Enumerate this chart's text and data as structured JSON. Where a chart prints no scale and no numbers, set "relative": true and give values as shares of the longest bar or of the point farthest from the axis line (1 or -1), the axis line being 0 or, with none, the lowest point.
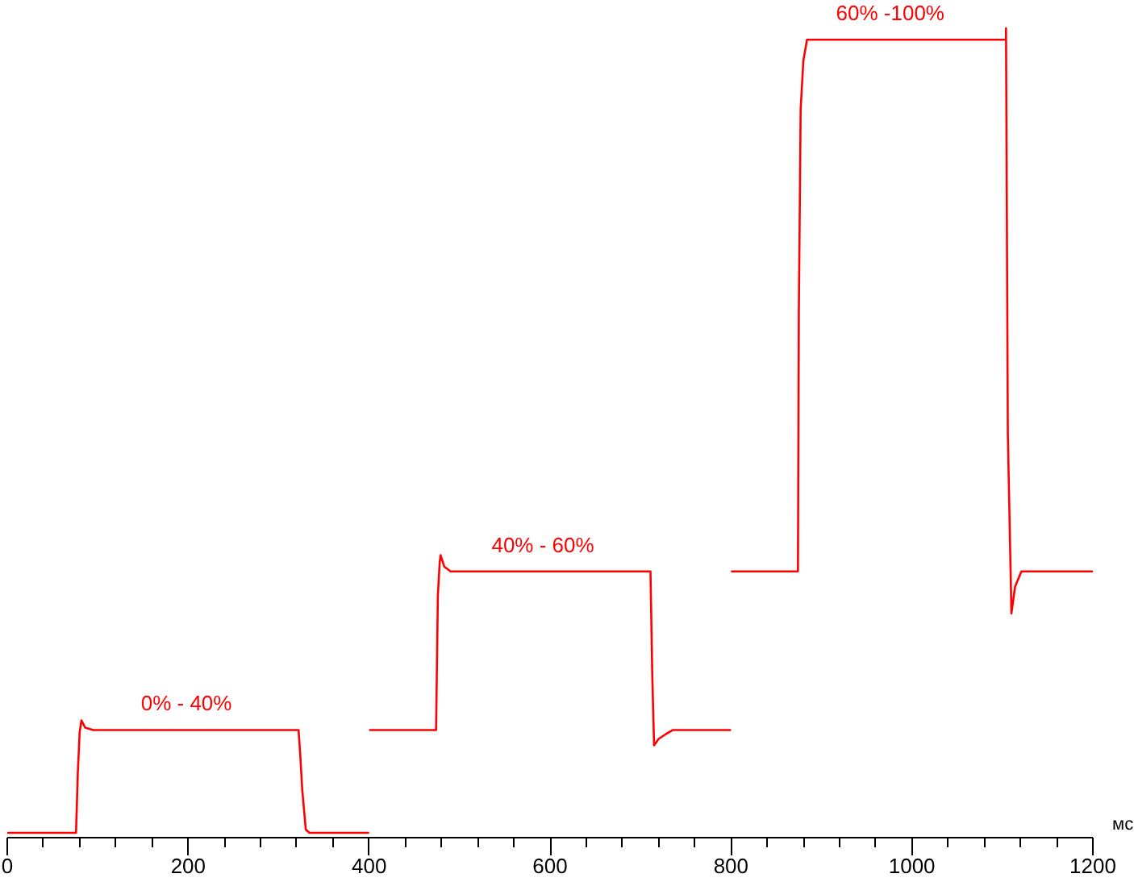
{
  "chart_data": {
    "type": "line",
    "relative": true,
    "xlabel": "мс",
    "grid": false,
    "marker": "none",
    "line_style": "solid",
    "xlim": [
      0,
      1200
    ],
    "xticks": [
      0,
      {
        "value": 40,
        "label": null
      },
      {
        "value": 80,
        "label": null
      },
      {
        "value": 120,
        "label": null
      },
      {
        "value": 160,
        "label": null
      },
      200,
      {
        "value": 240,
        "label": null
      },
      {
        "value": 280,
        "label": null
      },
      {
        "value": 320,
        "label": null
      },
      {
        "value": 360,
        "label": null
      },
      400,
      {
        "value": 440,
        "label": null
      },
      {
        "value": 480,
        "label": null
      },
      {
        "value": 520,
        "label": null
      },
      {
        "value": 560,
        "label": null
      },
      600,
      {
        "value": 640,
        "label": null
      },
      {
        "value": 680,
        "label": null
      },
      {
        "value": 720,
        "label": null
      },
      {
        "value": 760,
        "label": null
      },
      800,
      {
        "value": 840,
        "label": null
      },
      {
        "value": 880,
        "label": null
      },
      {
        "value": 920,
        "label": null
      },
      {
        "value": 960,
        "label": null
      },
      1000,
      {
        "value": 1040,
        "label": null
      },
      {
        "value": 1080,
        "label": null
      },
      {
        "value": 1120,
        "label": null
      },
      {
        "value": 1160,
        "label": null
      },
      1200
    ],
    "series": [
      {
        "color": "#ff0000",
        "x": [
          0,
          76,
          78,
          80,
          82,
          86,
          95,
          322,
          324,
          326,
          330,
          334,
          400
        ],
        "values": [
          0.006,
          0.006,
          0.08,
          0.13,
          0.145,
          0.136,
          0.133,
          0.133,
          0.1,
          0.06,
          0.01,
          0.006,
          0.006
        ]
      },
      {
        "color": "#ff0000",
        "x": [
          400,
          474,
          476,
          478,
          479,
          483,
          490,
          711,
          713,
          715,
          720,
          728,
          736,
          800
        ],
        "values": [
          0.133,
          0.133,
          0.3,
          0.34,
          0.349,
          0.335,
          0.329,
          0.329,
          0.2,
          0.114,
          0.122,
          0.128,
          0.133,
          0.133
        ]
      },
      {
        "color": "#ff0000",
        "x": [
          800,
          874,
          875,
          877,
          880,
          884,
          1104,
          1104,
          1106,
          1110,
          1114,
          1121,
          1200
        ],
        "values": [
          0.329,
          0.329,
          0.65,
          0.9,
          0.96,
          0.986,
          0.986,
          1.0,
          0.5,
          0.277,
          0.31,
          0.329,
          0.329
        ]
      }
    ],
    "annotations": [
      {
        "text": "0% - 40%",
        "x": 198,
        "y": 0.133
      },
      {
        "text": "40% - 60%",
        "x": 592,
        "y": 0.329
      },
      {
        "text": "60% -100%",
        "x": 976,
        "y": 0.986
      }
    ]
  }
}
